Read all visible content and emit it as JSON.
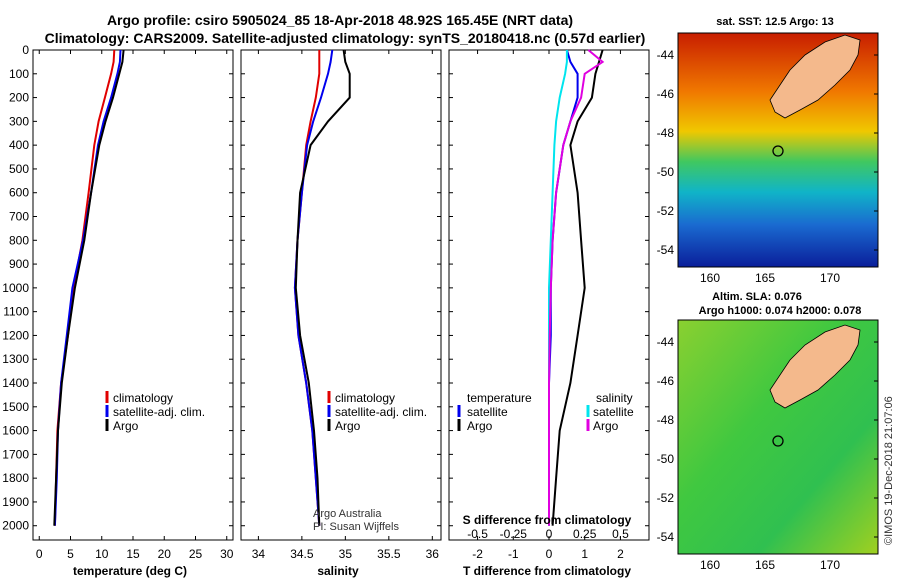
{
  "title_line1": "Argo profile: csiro 5905024_85 18-Apr-2018 48.92S 165.45E (NRT data)",
  "title_line2": "Climatology: CARS2009. Satellite-adjusted climatology: synTS_20180418.nc (0.57d earlier)",
  "sst_title": "sat. SST: 12.5 Argo: 13",
  "altim_title1": "Altim. SLA: 0.076",
  "altim_title2": "Argo h1000: 0.074 h2000: 0.078",
  "credit_left": "Argo Australia",
  "credit_left2": "PI: Susan Wijffels",
  "credit_right": "©IMOS 19-Dec-2018 21:07:06",
  "colors": {
    "climatology": "#e00000",
    "satellite": "#0000ee",
    "argo": "#000000",
    "sat_salinity": "#00e5ee",
    "argo_salinity": "#e000e0"
  },
  "chart_data": [
    {
      "type": "line",
      "xlabel": "temperature (deg C)",
      "ylabel": "",
      "xlim": [
        -1,
        31
      ],
      "ylim": [
        2060,
        0
      ],
      "x_ticks": [
        "0",
        "5",
        "10",
        "15",
        "20",
        "25",
        "30"
      ],
      "y_ticks": [
        "0",
        "100",
        "200",
        "300",
        "400",
        "500",
        "600",
        "700",
        "800",
        "900",
        "1000",
        "1100",
        "1200",
        "1300",
        "1400",
        "1500",
        "1600",
        "1700",
        "1800",
        "1900",
        "2000"
      ],
      "legend": [
        "climatology",
        "satellite-adj. clim.",
        "Argo"
      ],
      "depth": [
        0,
        50,
        100,
        200,
        300,
        400,
        600,
        800,
        1000,
        1200,
        1400,
        1600,
        1800,
        2000
      ],
      "series": [
        {
          "name": "climatology",
          "values": [
            12.0,
            11.9,
            11.5,
            10.5,
            9.5,
            8.8,
            7.9,
            6.9,
            5.5,
            4.6,
            3.5,
            2.9,
            2.7,
            2.5
          ]
        },
        {
          "name": "satellite-adj. clim.",
          "values": [
            13.0,
            12.9,
            12.5,
            11.5,
            10.3,
            9.4,
            8.3,
            7.0,
            5.3,
            4.4,
            3.5,
            3.0,
            2.8,
            2.5
          ]
        },
        {
          "name": "Argo",
          "values": [
            13.5,
            13.3,
            12.8,
            11.8,
            10.6,
            9.6,
            8.3,
            7.2,
            5.7,
            4.6,
            3.6,
            3.0,
            2.7,
            2.4
          ]
        }
      ]
    },
    {
      "type": "line",
      "xlabel": "salinity",
      "ylabel": "",
      "xlim": [
        33.8,
        36.1
      ],
      "ylim": [
        2060,
        0
      ],
      "x_ticks": [
        "34",
        "34.5",
        "35",
        "35.5",
        "36"
      ],
      "legend": [
        "climatology",
        "satellite-adj. clim.",
        "Argo"
      ],
      "depth": [
        0,
        50,
        100,
        200,
        300,
        400,
        600,
        800,
        1000,
        1200,
        1400,
        1600,
        1800,
        2000
      ],
      "series": [
        {
          "name": "climatology",
          "values": [
            34.7,
            34.7,
            34.7,
            34.66,
            34.6,
            34.55,
            34.5,
            34.45,
            34.42,
            34.46,
            34.55,
            34.62,
            34.66,
            34.7
          ]
        },
        {
          "name": "satellite-adj. clim.",
          "values": [
            34.85,
            34.83,
            34.8,
            34.72,
            34.63,
            34.56,
            34.5,
            34.45,
            34.42,
            34.46,
            34.55,
            34.62,
            34.66,
            34.7
          ]
        },
        {
          "name": "Argo",
          "values": [
            34.98,
            35.0,
            35.05,
            35.05,
            34.8,
            34.6,
            34.48,
            34.45,
            34.43,
            34.48,
            34.58,
            34.64,
            34.68,
            34.7
          ]
        }
      ]
    },
    {
      "type": "line",
      "xlabel": "T difference from climatology",
      "xlabel_top": "S difference from climatology",
      "ylabel": "",
      "xlim": [
        -2.8,
        2.8
      ],
      "ylim": [
        2060,
        0
      ],
      "x_ticks": [
        "-2",
        "-1",
        "0",
        "1",
        "2"
      ],
      "x_ticks_top": [
        "-0.5",
        "-0.25",
        "0",
        "0.25",
        "0.5"
      ],
      "legend_temperature": {
        "heading": "temperature",
        "items": [
          "satellite",
          "Argo"
        ]
      },
      "legend_salinity": {
        "heading": "salinity",
        "items": [
          "satellite",
          "Argo"
        ]
      },
      "depth": [
        0,
        50,
        100,
        200,
        300,
        400,
        600,
        800,
        1000,
        1200,
        1400,
        1600,
        1800,
        2000
      ],
      "series": [
        {
          "name": "T satellite",
          "values": [
            0.5,
            0.6,
            0.8,
            0.8,
            0.6,
            0.4,
            0.2,
            0.1,
            0.05,
            0.05,
            0.0,
            0.0,
            0.0,
            0.0
          ]
        },
        {
          "name": "T Argo",
          "values": [
            1.5,
            1.4,
            1.3,
            1.2,
            0.8,
            0.6,
            0.8,
            0.9,
            1.0,
            0.8,
            0.6,
            0.3,
            0.2,
            0.1
          ]
        },
        {
          "name": "S satellite",
          "values": [
            0.5,
            0.5,
            0.45,
            0.3,
            0.2,
            0.15,
            0.1,
            0.05,
            0.0,
            0.0,
            0.0,
            0.0,
            0.0,
            0.0
          ]
        },
        {
          "name": "S Argo",
          "values": [
            1.1,
            1.5,
            1.0,
            0.9,
            0.6,
            0.4,
            0.2,
            0.1,
            0.05,
            0.02,
            0.0,
            0.0,
            0.0,
            0.0
          ]
        }
      ]
    },
    {
      "type": "heatmap",
      "title": "sat. SST: 12.5 Argo: 13",
      "x_ticks": [
        "160",
        "165",
        "170"
      ],
      "y_ticks": [
        "-44",
        "-46",
        "-48",
        "-50",
        "-52",
        "-54"
      ]
    },
    {
      "type": "heatmap",
      "title": "Altim. SLA: 0.076",
      "x_ticks": [
        "160",
        "165",
        "170"
      ],
      "y_ticks": [
        "-44",
        "-46",
        "-48",
        "-50",
        "-52",
        "-54"
      ]
    }
  ]
}
